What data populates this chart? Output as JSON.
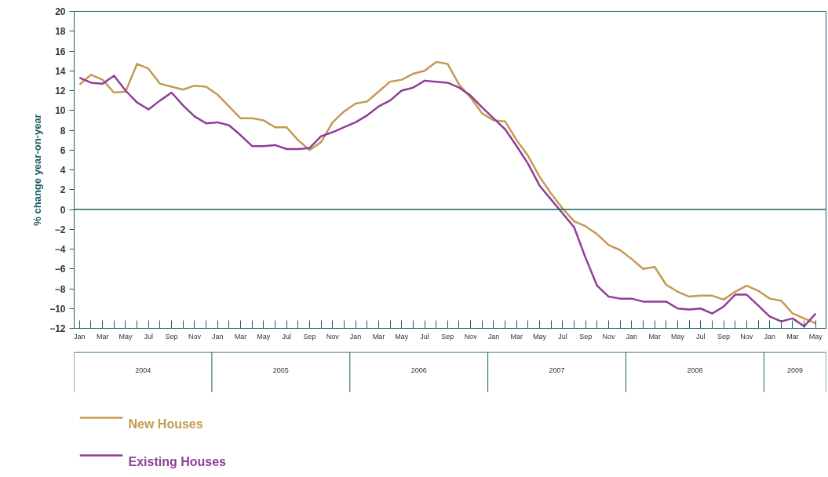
{
  "chart_data": {
    "type": "line",
    "ylabel": "% change year-on-year",
    "x": [
      "2004-01",
      "2004-02",
      "2004-03",
      "2004-04",
      "2004-05",
      "2004-06",
      "2004-07",
      "2004-08",
      "2004-09",
      "2004-10",
      "2004-11",
      "2004-12",
      "2005-01",
      "2005-02",
      "2005-03",
      "2005-04",
      "2005-05",
      "2005-06",
      "2005-07",
      "2005-08",
      "2005-09",
      "2005-10",
      "2005-11",
      "2005-12",
      "2006-01",
      "2006-02",
      "2006-03",
      "2006-04",
      "2006-05",
      "2006-06",
      "2006-07",
      "2006-08",
      "2006-09",
      "2006-10",
      "2006-11",
      "2006-12",
      "2007-01",
      "2007-02",
      "2007-03",
      "2007-04",
      "2007-05",
      "2007-06",
      "2007-07",
      "2007-08",
      "2007-09",
      "2007-10",
      "2007-11",
      "2007-12",
      "2008-01",
      "2008-02",
      "2008-03",
      "2008-04",
      "2008-05",
      "2008-06",
      "2008-07",
      "2008-08",
      "2008-09",
      "2008-10",
      "2008-11",
      "2008-12",
      "2009-01",
      "2009-02",
      "2009-03",
      "2009-04",
      "2009-05"
    ],
    "series": [
      {
        "name": "New Houses",
        "color": "#c49a50",
        "values": [
          12.6,
          13.6,
          13.1,
          11.8,
          11.9,
          14.7,
          14.2,
          12.7,
          12.4,
          12.1,
          12.5,
          12.4,
          11.6,
          10.4,
          9.2,
          9.2,
          9.0,
          8.3,
          8.3,
          7.0,
          6.0,
          6.8,
          8.8,
          9.9,
          10.7,
          10.9,
          11.9,
          12.9,
          13.1,
          13.7,
          14.0,
          14.9,
          14.7,
          12.6,
          11.3,
          9.7,
          9.0,
          8.9,
          7.0,
          5.4,
          3.3,
          1.6,
          0.1,
          -1.2,
          -1.7,
          -2.5,
          -3.6,
          -4.1,
          -5.0,
          -6.0,
          -5.8,
          -7.6,
          -8.3,
          -8.8,
          -8.7,
          -8.7,
          -9.1,
          -8.3,
          -7.7,
          -8.2,
          -9.0,
          -9.2,
          -10.5,
          -11.0,
          -11.5
        ]
      },
      {
        "name": "Existing Houses",
        "color": "#8e3f96",
        "values": [
          13.3,
          12.8,
          12.7,
          13.5,
          12.0,
          10.8,
          10.1,
          11.0,
          11.8,
          10.5,
          9.4,
          8.7,
          8.8,
          8.5,
          7.5,
          6.4,
          6.4,
          6.5,
          6.1,
          6.1,
          6.2,
          7.4,
          7.8,
          8.3,
          8.8,
          9.5,
          10.4,
          11.0,
          12.0,
          12.3,
          13.0,
          12.9,
          12.8,
          12.3,
          11.5,
          10.3,
          9.2,
          8.1,
          6.4,
          4.6,
          2.4,
          1.0,
          -0.4,
          -1.8,
          -4.9,
          -7.7,
          -8.8,
          -9.0,
          -9.0,
          -9.3,
          -9.3,
          -9.3,
          -10.0,
          -10.1,
          -10.0,
          -10.5,
          -9.8,
          -8.6,
          -8.6,
          -9.7,
          -10.8,
          -11.3,
          -11.0,
          -11.8,
          -10.5
        ]
      }
    ],
    "xlim": [
      "2003-12-17",
      "2009-05-28"
    ],
    "xticks": [
      {
        "value": "2004-01",
        "label": "Jan"
      },
      {
        "value": "2004-02",
        "label": null
      },
      {
        "value": "2004-03",
        "label": "Mar"
      },
      {
        "value": "2004-04",
        "label": null
      },
      {
        "value": "2004-05",
        "label": "May"
      },
      {
        "value": "2004-06",
        "label": null
      },
      {
        "value": "2004-07",
        "label": "Jul"
      },
      {
        "value": "2004-08",
        "label": null
      },
      {
        "value": "2004-09",
        "label": "Sep"
      },
      {
        "value": "2004-10",
        "label": null
      },
      {
        "value": "2004-11",
        "label": "Nov"
      },
      {
        "value": "2004-12",
        "label": null
      },
      {
        "value": "2005-01",
        "label": "Jan"
      },
      {
        "value": "2005-02",
        "label": null
      },
      {
        "value": "2005-03",
        "label": "Mar"
      },
      {
        "value": "2005-04",
        "label": null
      },
      {
        "value": "2005-05",
        "label": "May"
      },
      {
        "value": "2005-06",
        "label": null
      },
      {
        "value": "2005-07",
        "label": "Jul"
      },
      {
        "value": "2005-08",
        "label": null
      },
      {
        "value": "2005-09",
        "label": "Sep"
      },
      {
        "value": "2005-10",
        "label": null
      },
      {
        "value": "2005-11",
        "label": "Nov"
      },
      {
        "value": "2005-12",
        "label": null
      },
      {
        "value": "2006-01",
        "label": "Jan"
      },
      {
        "value": "2006-02",
        "label": null
      },
      {
        "value": "2006-03",
        "label": "Mar"
      },
      {
        "value": "2006-04",
        "label": null
      },
      {
        "value": "2006-05",
        "label": "May"
      },
      {
        "value": "2006-06",
        "label": null
      },
      {
        "value": "2006-07",
        "label": "Jul"
      },
      {
        "value": "2006-08",
        "label": null
      },
      {
        "value": "2006-09",
        "label": "Sep"
      },
      {
        "value": "2006-10",
        "label": null
      },
      {
        "value": "2006-11",
        "label": "Nov"
      },
      {
        "value": "2006-12",
        "label": null
      },
      {
        "value": "2007-01",
        "label": "Jan"
      },
      {
        "value": "2007-02",
        "label": null
      },
      {
        "value": "2007-03",
        "label": "Mar"
      },
      {
        "value": "2007-04",
        "label": null
      },
      {
        "value": "2007-05",
        "label": "May"
      },
      {
        "value": "2007-06",
        "label": null
      },
      {
        "value": "2007-07",
        "label": "Jul"
      },
      {
        "value": "2007-08",
        "label": null
      },
      {
        "value": "2007-09",
        "label": "Sep"
      },
      {
        "value": "2007-10",
        "label": null
      },
      {
        "value": "2007-11",
        "label": "Nov"
      },
      {
        "value": "2007-12",
        "label": null
      },
      {
        "value": "2008-01",
        "label": "Jan"
      },
      {
        "value": "2008-02",
        "label": null
      },
      {
        "value": "2008-03",
        "label": "Mar"
      },
      {
        "value": "2008-04",
        "label": null
      },
      {
        "value": "2008-05",
        "label": "May"
      },
      {
        "value": "2008-06",
        "label": null
      },
      {
        "value": "2008-07",
        "label": "Jul"
      },
      {
        "value": "2008-08",
        "label": null
      },
      {
        "value": "2008-09",
        "label": "Sep"
      },
      {
        "value": "2008-10",
        "label": null
      },
      {
        "value": "2008-11",
        "label": "Nov"
      },
      {
        "value": "2008-12",
        "label": null
      },
      {
        "value": "2009-01",
        "label": "Jan"
      },
      {
        "value": "2009-02",
        "label": null
      },
      {
        "value": "2009-03",
        "label": "Mar"
      },
      {
        "value": "2009-04",
        "label": null
      },
      {
        "value": "2009-05",
        "label": "May"
      }
    ],
    "ylim": [
      -12,
      20
    ],
    "yticks": [
      -12,
      -10,
      -8,
      -6,
      -4,
      -2,
      0,
      2,
      4,
      6,
      8,
      10,
      12,
      14,
      16,
      18,
      20
    ],
    "ref_lines": [
      {
        "axis": "y",
        "value": 0,
        "label": null,
        "color": "#1b5e63"
      }
    ],
    "annotations": [
      "2004",
      "2005",
      "2006",
      "2007",
      "2008",
      "2009"
    ],
    "grid": false,
    "legend": "bottom left",
    "marker": "none",
    "line_style": "solid"
  }
}
